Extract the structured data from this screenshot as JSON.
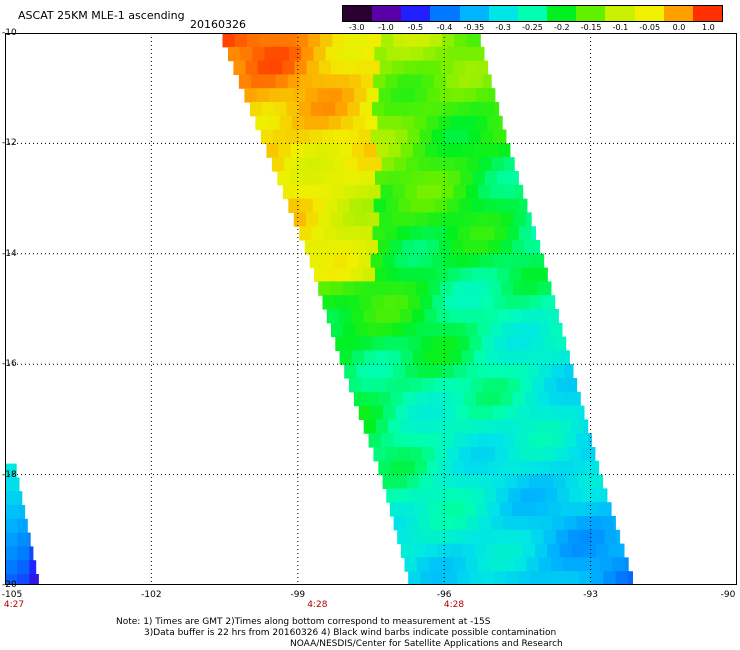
{
  "header": {
    "title": "ASCAT 25KM MLE-1 ascending",
    "date": "20160326"
  },
  "colorbar": {
    "labels": [
      "-3.0",
      "-1.0",
      "-0.5",
      "-0.4",
      "-0.35",
      "-0.3",
      "-0.25",
      "-0.2",
      "-0.15",
      "-0.1",
      "-0.05",
      "0.0",
      "1.0"
    ],
    "colors": [
      "#2a0030",
      "#5a00a8",
      "#2020ff",
      "#0078ff",
      "#00b4ff",
      "#00e6e6",
      "#00ffb0",
      "#00f020",
      "#60f000",
      "#c8f000",
      "#f0f000",
      "#ffa000",
      "#ff3000"
    ]
  },
  "axes": {
    "y_ticks": [
      "-10",
      "-12",
      "-14",
      "-16",
      "-18",
      "-20"
    ],
    "x_ticks": [
      "-105",
      "-102",
      "-99",
      "-96",
      "-93",
      "-90"
    ],
    "time_labels": [
      "4:27",
      "4:28",
      "4:28"
    ],
    "grid": true
  },
  "map": {
    "lat_range": [
      -20,
      -10
    ],
    "lon_range": [
      -105,
      -90
    ],
    "swaths": [
      {
        "name": "main",
        "left_edge": [
          [
            -10,
            -100.6
          ],
          [
            -12,
            -99.7
          ],
          [
            -14,
            -98.8
          ],
          [
            -16,
            -98.1
          ],
          [
            -18,
            -97.3
          ],
          [
            -20,
            -96.7
          ]
        ],
        "right_edge": [
          [
            -10,
            -95.3
          ],
          [
            -12,
            -94.7
          ],
          [
            -14,
            -94.0
          ],
          [
            -16,
            -93.4
          ],
          [
            -18,
            -92.8
          ],
          [
            -20,
            -92.1
          ]
        ]
      },
      {
        "name": "corner",
        "left_edge": [
          [
            -17.8,
            -105.0
          ],
          [
            -20,
            -105.0
          ]
        ],
        "right_edge": [
          [
            -17.8,
            -104.8
          ],
          [
            -20,
            -104.3
          ]
        ]
      }
    ]
  },
  "notes": [
    "Note: 1) Times are GMT 2)Times along bottom correspond to measurement at -15S",
    "3)Data buffer is 22 hrs from 20160326 4) Black wind barbs indicate possible contamination",
    "NOAA/NESDIS/Center for Satellite Applications and Research"
  ]
}
